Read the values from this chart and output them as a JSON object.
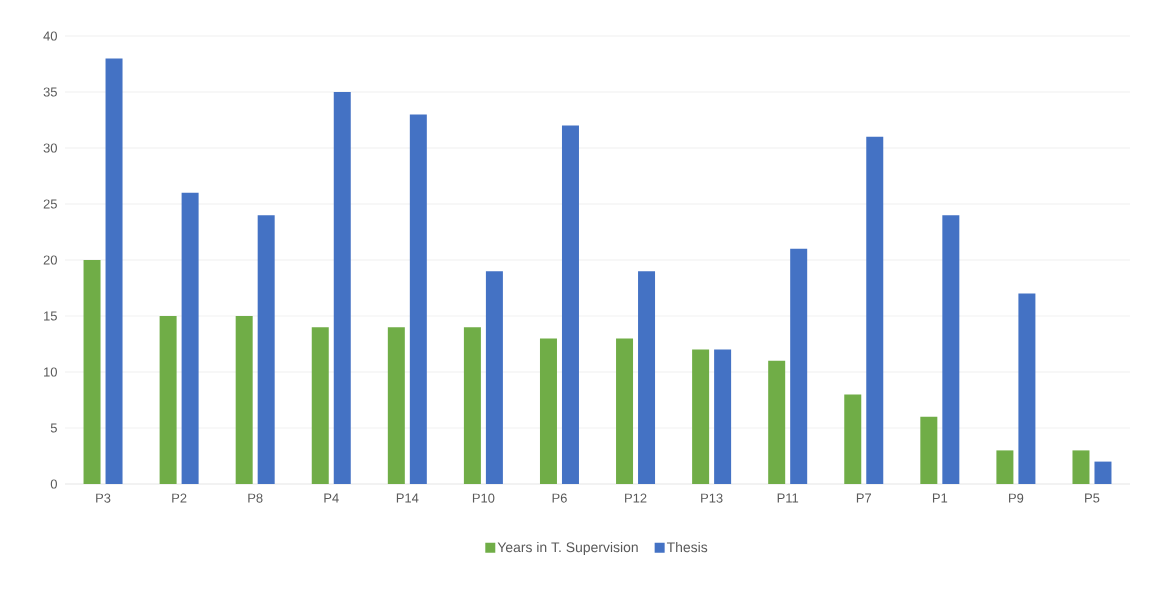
{
  "chart_data": {
    "type": "bar",
    "categories": [
      "P3",
      "P2",
      "P8",
      "P4",
      "P14",
      "P10",
      "P6",
      "P12",
      "P13",
      "P11",
      "P7",
      "P1",
      "P9",
      "P5"
    ],
    "series": [
      {
        "name": "Years in T. Supervision",
        "color": "#70ad47",
        "values": [
          20,
          15,
          15,
          14,
          14,
          14,
          13,
          13,
          12,
          11,
          8,
          6,
          3,
          3
        ]
      },
      {
        "name": "Thesis",
        "color": "#4472c4",
        "values": [
          38,
          26,
          24,
          35,
          33,
          19,
          32,
          19,
          12,
          21,
          31,
          24,
          17,
          2
        ]
      }
    ],
    "ylim": [
      0,
      40
    ],
    "yticks": [
      0,
      5,
      10,
      15,
      20,
      25,
      30,
      35,
      40
    ],
    "grid": "y",
    "legend": "bottom"
  }
}
